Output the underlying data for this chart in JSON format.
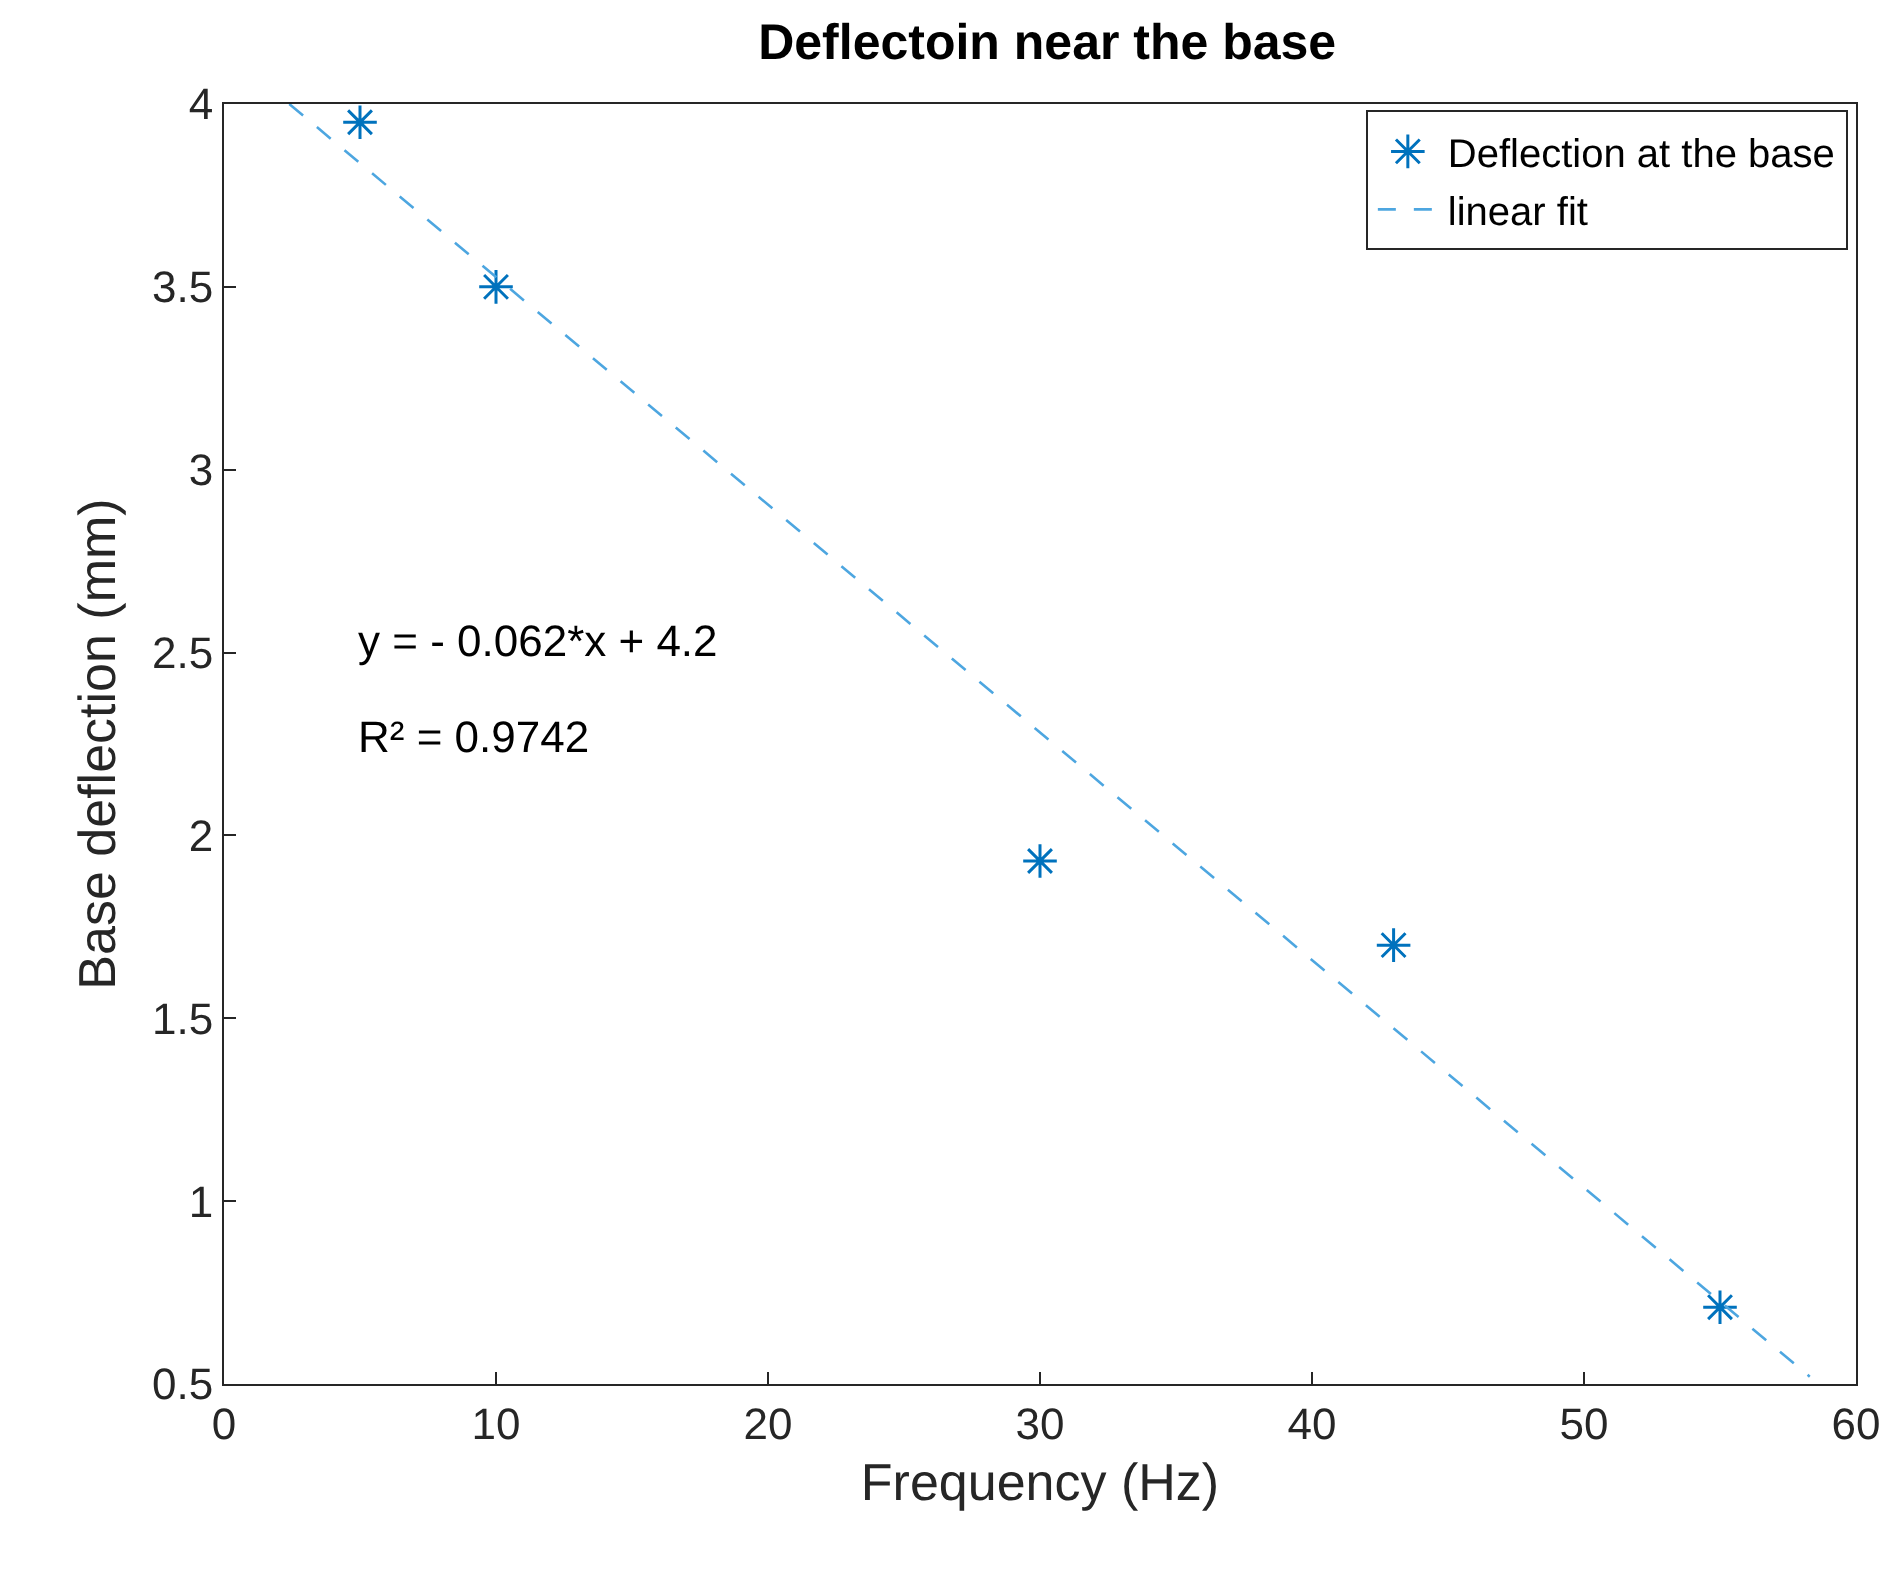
{
  "chart_data": {
    "type": "scatter",
    "title": "Deflectoin near the base",
    "xlabel": "Frequency (Hz)",
    "ylabel": "Base deflection (mm)",
    "xlim": [
      0,
      60
    ],
    "xticks": [
      0,
      10,
      20,
      30,
      40,
      50,
      60
    ],
    "ylim": [
      0.5,
      4
    ],
    "yticks": [
      0.5,
      1,
      1.5,
      2,
      2.5,
      3,
      3.5,
      4
    ],
    "series": [
      {
        "name": "Deflection at the base",
        "color": "#0072bd",
        "marker": "cross",
        "x": [
          5,
          10,
          30,
          43,
          55
        ],
        "values": [
          3.95,
          3.5,
          1.93,
          1.7,
          0.71
        ]
      },
      {
        "name": "linear fit",
        "type": "line",
        "color": "#4da6e0",
        "line_style": "dashed",
        "marker": "none",
        "x": [
          2.4,
          58.3
        ],
        "values": [
          4.0,
          0.52
        ]
      }
    ],
    "annotations": [
      "y = - 0.062*x + 4.2",
      "R² = 0.9742"
    ],
    "grid": false,
    "legend": "top right"
  }
}
